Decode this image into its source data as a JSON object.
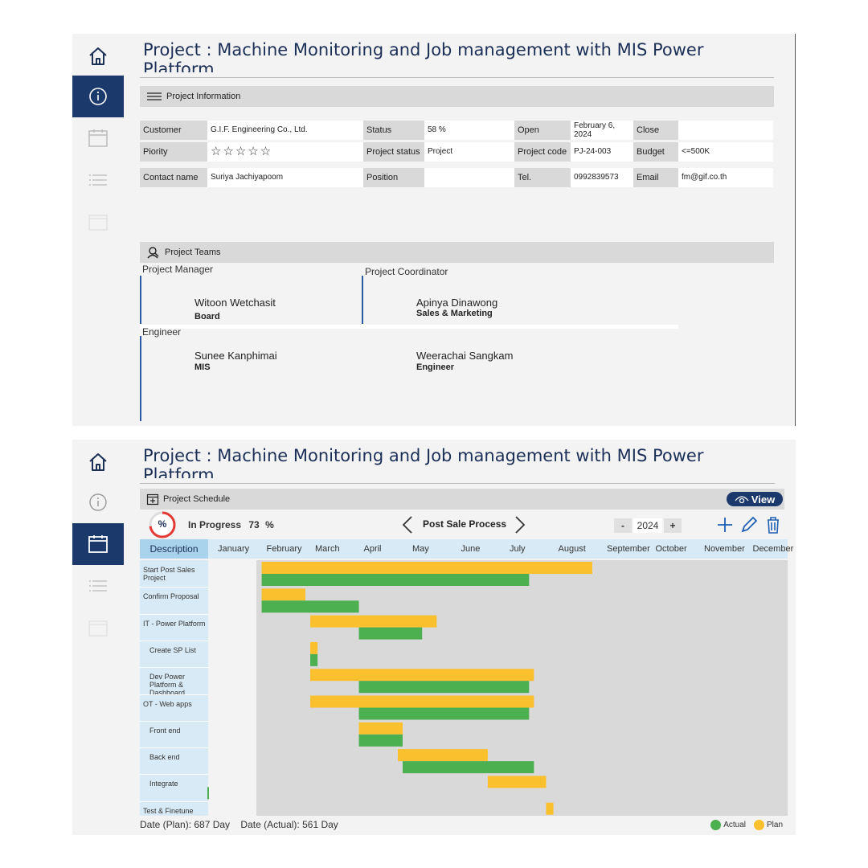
{
  "project_title": "Project : Machine Monitoring and Job management  with MIS Power Platform",
  "sidebar": {
    "home": "home-icon",
    "info": "info-icon",
    "calendar": "calendar-icon",
    "list": "list-icon",
    "folder": "folder-icon"
  },
  "info_section": {
    "heading": "Project Information",
    "customer_label": "Customer",
    "customer": "G.I.F. Engineering Co., Ltd.",
    "status_label": "Status",
    "status": "58 %",
    "open_label": "Open",
    "open": "February 6, 2024",
    "close_label": "Close",
    "close": "",
    "priority_label": "Piority",
    "priority_stars": "☆☆☆☆☆",
    "project_status_label": "Project status",
    "project_status": "Project",
    "project_code_label": "Project code",
    "project_code": "PJ-24-003",
    "budget_label": "Budget",
    "budget": "<=500K",
    "contact_label": "Contact name",
    "contact": "Suriya  Jachiyapoom",
    "position_label": "Position",
    "position": "",
    "tel_label": "Tel.",
    "tel": "0992839573",
    "email_label": "Email",
    "email": "fm@gif.co.th"
  },
  "teams_section": {
    "heading": "Project Teams",
    "pm_label": "Project Manager",
    "pm_name": "Witoon Wetchasit",
    "pm_role": "Board",
    "pc_label": "Project Coordinator",
    "pc_name": "Apinya Dinawong",
    "pc_role": "Sales & Marketing",
    "eng_label": "Engineer",
    "eng1_name": "Sunee Kanphimai",
    "eng1_role": "MIS",
    "eng2_name": "Weerachai Sangkam",
    "eng2_role": "Engineer"
  },
  "schedule": {
    "heading": "Project Schedule",
    "view_label": "View",
    "progress_icon": "%",
    "progress_text": "In Progress",
    "progress_value": "73",
    "progress_unit": "%",
    "progress_fraction": 0.73,
    "process_name": "Post Sale Process",
    "year": "2024",
    "minus": "-",
    "plus": "+",
    "desc_header": "Description",
    "months": [
      "January",
      "February",
      "March",
      "April",
      "May",
      "June",
      "July",
      "August",
      "September",
      "October",
      "November",
      "December"
    ],
    "tasks": [
      "Start Post Sales Project",
      "Confirm Proposal",
      "IT - Power Platform",
      "Create SP List",
      "Dev Power Platform & Dashboard",
      "OT - Web apps",
      "Front end",
      "Back end",
      "Integrate",
      "Test & Finetune"
    ],
    "plan_days": "Date (Plan): 687 Day",
    "actual_days": "Date (Actual): 561 Day",
    "legend_actual": "Actual",
    "legend_plan": "Plan",
    "color_actual": "#4caf50",
    "color_plan": "#fbc02d"
  },
  "chart_data": {
    "type": "gantt",
    "year": 2024,
    "month_axis": [
      "January",
      "February",
      "March",
      "April",
      "May",
      "June",
      "July",
      "August",
      "September",
      "October",
      "November",
      "December"
    ],
    "tasks": [
      {
        "name": "Start Post Sales Project",
        "plan": [
          2.1,
          8.9
        ],
        "actual": [
          2.1,
          7.6
        ]
      },
      {
        "name": "Confirm Proposal",
        "plan": [
          2.1,
          3.0
        ],
        "actual": [
          2.1,
          4.1
        ]
      },
      {
        "name": "IT - Power Platform",
        "plan": [
          3.1,
          5.7
        ],
        "actual": [
          4.1,
          5.4
        ]
      },
      {
        "name": "Create SP List",
        "plan": [
          3.1,
          3.25
        ],
        "actual": [
          3.1,
          3.25
        ]
      },
      {
        "name": "Dev Power Platform & Dashboard",
        "plan": [
          3.1,
          7.7
        ],
        "actual": [
          4.1,
          7.6
        ]
      },
      {
        "name": "OT - Web apps",
        "plan": [
          3.1,
          7.7
        ],
        "actual": [
          4.1,
          7.6
        ]
      },
      {
        "name": "Front end",
        "plan": [
          4.1,
          5.0
        ],
        "actual": [
          4.1,
          5.0
        ]
      },
      {
        "name": "Back end",
        "plan": [
          4.9,
          6.75
        ],
        "actual": [
          5.0,
          7.7
        ]
      },
      {
        "name": "Integrate",
        "plan": [
          6.75,
          7.95
        ],
        "actual": null
      },
      {
        "name": "Test & Finetune",
        "plan": [
          7.95,
          8.1
        ],
        "actual": null
      }
    ]
  }
}
